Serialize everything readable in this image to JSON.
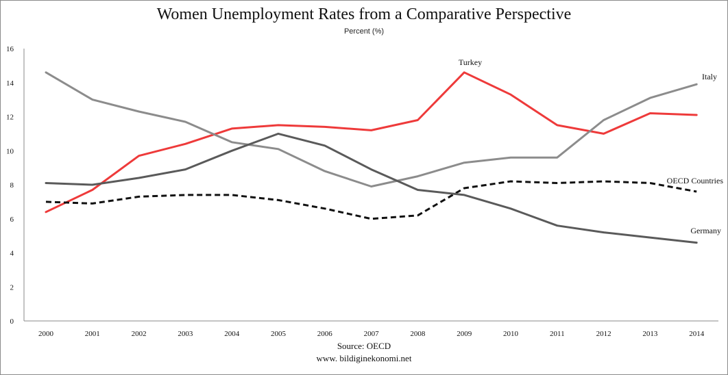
{
  "chart_data": {
    "type": "line",
    "title": "Women Unemployment Rates from a Comparative Perspective",
    "subtitle": "Percent (%)",
    "xlabel": "",
    "ylabel": "",
    "ylim": [
      0,
      16
    ],
    "yticks": [
      "0",
      "2",
      "4",
      "6",
      "8",
      "10",
      "12",
      "14",
      "16"
    ],
    "categories": [
      "2000",
      "2001",
      "2002",
      "2003",
      "2004",
      "2005",
      "2006",
      "2007",
      "2008",
      "2009",
      "2010",
      "2011",
      "2012",
      "2013",
      "2014"
    ],
    "grid": false,
    "series": [
      {
        "name": "Turkey",
        "color": "#ee3a3a",
        "dash": false,
        "values": [
          6.4,
          7.7,
          9.7,
          10.4,
          11.3,
          11.5,
          11.4,
          11.2,
          11.8,
          14.6,
          13.3,
          11.5,
          11.0,
          12.2,
          12.1
        ]
      },
      {
        "name": "Italy",
        "color": "#8c8c8c",
        "dash": false,
        "values": [
          14.6,
          13.0,
          12.3,
          11.7,
          10.5,
          10.1,
          8.8,
          7.9,
          8.5,
          9.3,
          9.6,
          9.6,
          11.8,
          13.1,
          13.9
        ]
      },
      {
        "name": "OECD Countries",
        "color": "#111111",
        "dash": true,
        "values": [
          7.0,
          6.9,
          7.3,
          7.4,
          7.4,
          7.1,
          6.6,
          6.0,
          6.2,
          7.8,
          8.2,
          8.1,
          8.2,
          8.1,
          7.6
        ]
      },
      {
        "name": "Germany",
        "color": "#5a5a5a",
        "dash": false,
        "values": [
          8.1,
          8.0,
          8.4,
          8.9,
          10.0,
          11.0,
          10.3,
          8.9,
          7.7,
          7.4,
          6.6,
          5.6,
          5.2,
          4.9,
          4.6
        ]
      }
    ],
    "source": "Source: OECD",
    "website": "www. bildiginekonomi.net"
  }
}
